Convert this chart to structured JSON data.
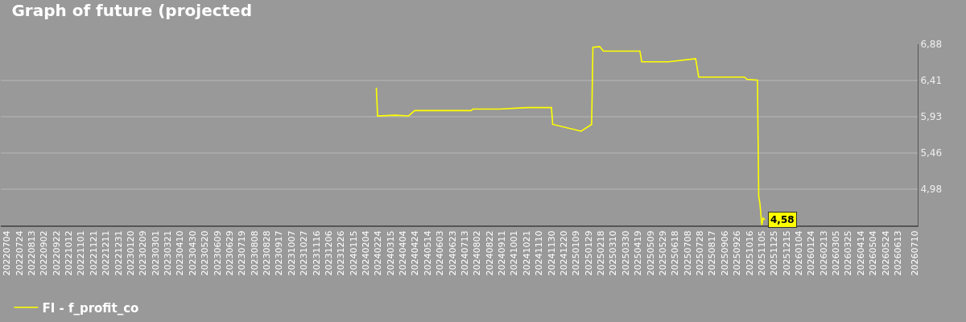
{
  "chart_data": {
    "type": "line",
    "title": "Graph of future (projected",
    "grid": "y",
    "legend": "bottom left",
    "marker": "none",
    "line_style": "solid",
    "x": [
      "2024-02-21",
      "2024-02-23",
      "2024-03-22",
      "2024-04-13",
      "2024-04-23",
      "2024-06-08",
      "2024-07-23",
      "2024-07-26",
      "2024-09-07",
      "2024-10-22",
      "2024-11-30",
      "2024-12-02",
      "2025-01-17",
      "2025-02-03",
      "2025-02-05",
      "2025-02-16",
      "2025-02-22",
      "2025-04-22",
      "2025-04-25",
      "2025-06-07",
      "2025-07-21",
      "2025-07-22",
      "2025-07-26",
      "2025-10-08",
      "2025-10-12",
      "2025-10-28",
      "2025-10-29",
      "2025-10-31",
      "2025-11-02",
      "2025-11-05",
      "2025-11-07",
      "2025-11-10"
    ],
    "series": [
      {
        "name": "FI - f_profit_co",
        "color": "#ffff00",
        "values": [
          6.31,
          5.94,
          5.95,
          5.94,
          6.01,
          6.01,
          6.01,
          6.03,
          6.03,
          6.05,
          6.05,
          5.83,
          5.74,
          5.83,
          6.84,
          6.85,
          6.79,
          6.79,
          6.65,
          6.65,
          6.69,
          6.65,
          6.45,
          6.45,
          6.42,
          6.41,
          6.41,
          4.89,
          4.79,
          4.51,
          4.6,
          4.58
        ],
        "value_labels": [
          null,
          null,
          null,
          null,
          null,
          null,
          null,
          null,
          null,
          null,
          null,
          null,
          null,
          null,
          null,
          null,
          null,
          null,
          null,
          null,
          null,
          null,
          null,
          null,
          null,
          null,
          null,
          null,
          null,
          null,
          null,
          "4,58"
        ]
      }
    ],
    "xlim": [
      "2022-06-24",
      "2026-07-15"
    ],
    "ylim": [
      4.505,
      6.88
    ],
    "yticks": [
      {
        "value": 4.98,
        "label": "4,98"
      },
      {
        "value": 5.46,
        "label": "5,46"
      },
      {
        "value": 5.93,
        "label": "5,93"
      },
      {
        "value": 6.41,
        "label": "6,41"
      },
      {
        "value": 6.88,
        "label": "6,88"
      }
    ],
    "xticks": [
      {
        "value": "2022-07-04",
        "label": "20220704"
      },
      {
        "value": "2022-07-24",
        "label": "20220724"
      },
      {
        "value": "2022-08-13",
        "label": "20220813"
      },
      {
        "value": "2022-09-02",
        "label": "20220902"
      },
      {
        "value": "2022-09-22",
        "label": "20220922"
      },
      {
        "value": "2022-10-12",
        "label": "20221012"
      },
      {
        "value": "2022-11-01",
        "label": "20221101"
      },
      {
        "value": "2022-11-21",
        "label": "20221121"
      },
      {
        "value": "2022-12-11",
        "label": "20221211"
      },
      {
        "value": "2022-12-31",
        "label": "20221231"
      },
      {
        "value": "2023-01-20",
        "label": "20230120"
      },
      {
        "value": "2023-02-09",
        "label": "20230209"
      },
      {
        "value": "2023-03-01",
        "label": "20230301"
      },
      {
        "value": "2023-03-21",
        "label": "20230321"
      },
      {
        "value": "2023-04-10",
        "label": "20230410"
      },
      {
        "value": "2023-04-30",
        "label": "20230430"
      },
      {
        "value": "2023-05-20",
        "label": "20230520"
      },
      {
        "value": "2023-06-09",
        "label": "20230609"
      },
      {
        "value": "2023-06-29",
        "label": "20230629"
      },
      {
        "value": "2023-07-19",
        "label": "20230719"
      },
      {
        "value": "2023-08-08",
        "label": "20230808"
      },
      {
        "value": "2023-08-28",
        "label": "20230828"
      },
      {
        "value": "2023-09-17",
        "label": "20230917"
      },
      {
        "value": "2023-10-07",
        "label": "20231007"
      },
      {
        "value": "2023-10-27",
        "label": "20231027"
      },
      {
        "value": "2023-11-16",
        "label": "20231116"
      },
      {
        "value": "2023-12-06",
        "label": "20231206"
      },
      {
        "value": "2023-12-26",
        "label": "20231226"
      },
      {
        "value": "2024-01-15",
        "label": "20240115"
      },
      {
        "value": "2024-02-04",
        "label": "20240204"
      },
      {
        "value": "2024-02-24",
        "label": "20240224"
      },
      {
        "value": "2024-03-15",
        "label": "20240315"
      },
      {
        "value": "2024-04-04",
        "label": "20240404"
      },
      {
        "value": "2024-04-24",
        "label": "20240424"
      },
      {
        "value": "2024-05-14",
        "label": "20240514"
      },
      {
        "value": "2024-06-03",
        "label": "20240603"
      },
      {
        "value": "2024-06-23",
        "label": "20240623"
      },
      {
        "value": "2024-07-13",
        "label": "20240713"
      },
      {
        "value": "2024-08-02",
        "label": "20240802"
      },
      {
        "value": "2024-08-22",
        "label": "20240822"
      },
      {
        "value": "2024-09-11",
        "label": "20240911"
      },
      {
        "value": "2024-10-01",
        "label": "20241001"
      },
      {
        "value": "2024-10-21",
        "label": "20241021"
      },
      {
        "value": "2024-11-10",
        "label": "20241110"
      },
      {
        "value": "2024-11-30",
        "label": "20241130"
      },
      {
        "value": "2024-12-20",
        "label": "20241220"
      },
      {
        "value": "2025-01-09",
        "label": "20250109"
      },
      {
        "value": "2025-01-29",
        "label": "20250129"
      },
      {
        "value": "2025-02-18",
        "label": "20250218"
      },
      {
        "value": "2025-03-10",
        "label": "20250310"
      },
      {
        "value": "2025-03-30",
        "label": "20250330"
      },
      {
        "value": "2025-04-19",
        "label": "20250419"
      },
      {
        "value": "2025-05-09",
        "label": "20250509"
      },
      {
        "value": "2025-05-29",
        "label": "20250529"
      },
      {
        "value": "2025-06-18",
        "label": "20250618"
      },
      {
        "value": "2025-07-08",
        "label": "20250708"
      },
      {
        "value": "2025-07-28",
        "label": "20250728"
      },
      {
        "value": "2025-08-17",
        "label": "20250817"
      },
      {
        "value": "2025-09-06",
        "label": "20250906"
      },
      {
        "value": "2025-09-26",
        "label": "20250926"
      },
      {
        "value": "2025-10-16",
        "label": "20251016"
      },
      {
        "value": "2025-11-05",
        "label": "20251105"
      },
      {
        "value": "2025-11-25",
        "label": "20251125"
      },
      {
        "value": "2025-12-15",
        "label": "20251215"
      },
      {
        "value": "2026-01-04",
        "label": "20260104"
      },
      {
        "value": "2026-01-24",
        "label": "20260124"
      },
      {
        "value": "2026-02-13",
        "label": "20260213"
      },
      {
        "value": "2026-03-05",
        "label": "20260305"
      },
      {
        "value": "2026-03-25",
        "label": "20260325"
      },
      {
        "value": "2026-04-14",
        "label": "20260414"
      },
      {
        "value": "2026-05-04",
        "label": "20260504"
      },
      {
        "value": "2026-05-24",
        "label": "20260524"
      },
      {
        "value": "2026-06-13",
        "label": "20260613"
      },
      {
        "value": "2026-07-10",
        "label": "20260710"
      }
    ]
  }
}
